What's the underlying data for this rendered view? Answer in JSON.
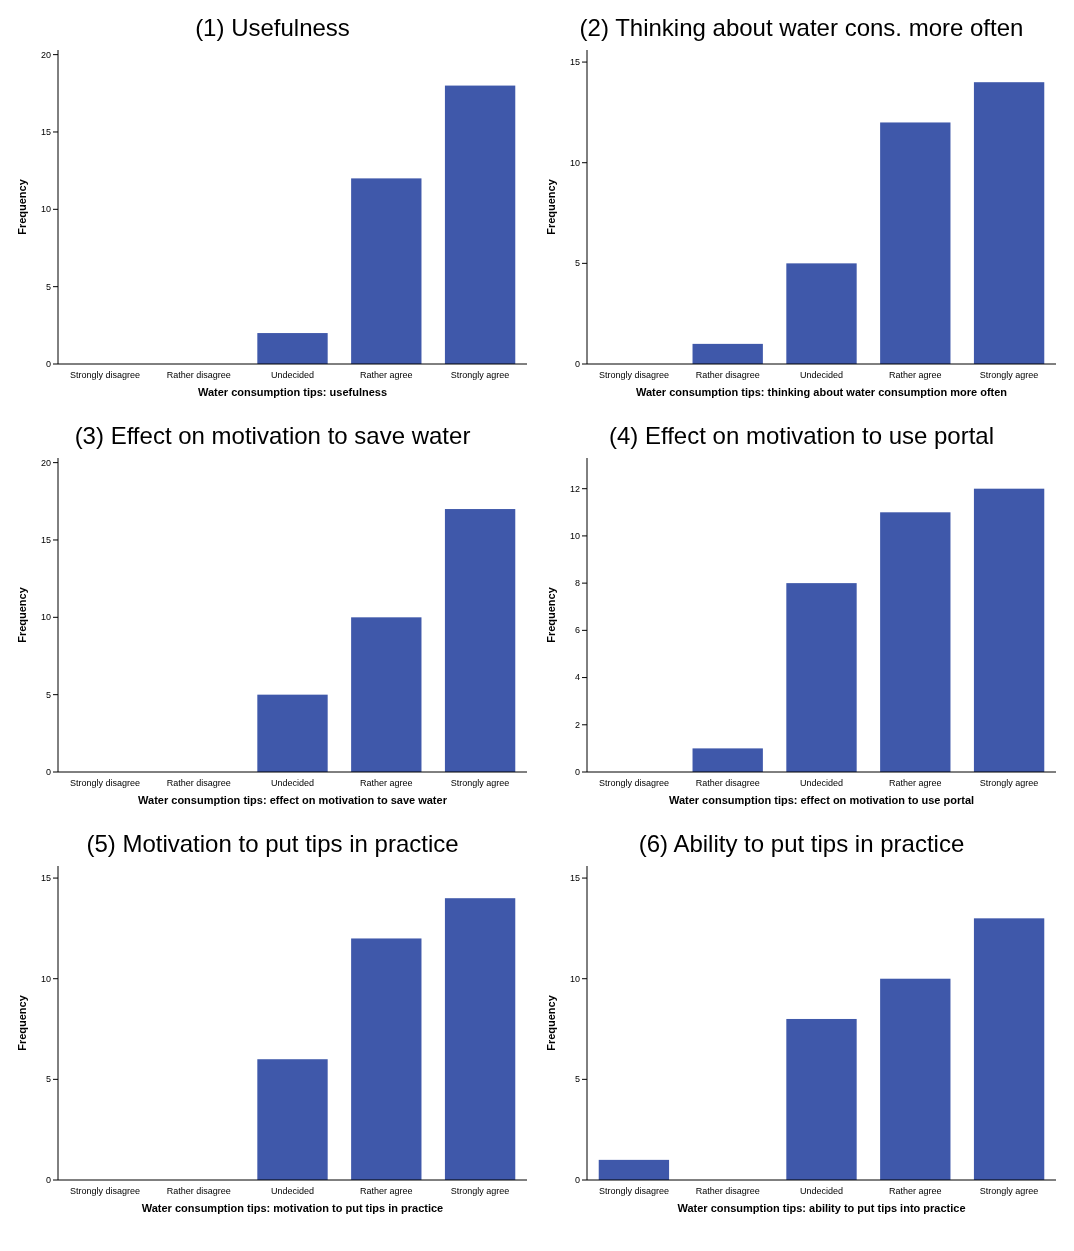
{
  "chart_data": [
    {
      "type": "bar",
      "title": "(1) Usefulness",
      "xlabel": "Water consumption tips: usefulness",
      "ylabel": "Frequency",
      "categories": [
        "Strongly disagree",
        "Rather disagree",
        "Undecided",
        "Rather agree",
        "Strongly agree"
      ],
      "values": [
        0,
        0,
        2,
        12,
        18
      ],
      "color": "#3f58aa",
      "ylim": [
        0,
        20.3
      ],
      "yticks": [
        0,
        5,
        10,
        15,
        20
      ],
      "grid": false
    },
    {
      "type": "bar",
      "title": "(2) Thinking about water cons. more often",
      "xlabel": "Water consumption tips: thinking about water consumption more often",
      "ylabel": "Frequency",
      "categories": [
        "Strongly disagree",
        "Rather disagree",
        "Undecided",
        "Rather agree",
        "Strongly agree"
      ],
      "values": [
        0,
        1,
        5,
        12,
        14
      ],
      "color": "#3f58aa",
      "ylim": [
        0,
        15.6
      ],
      "yticks": [
        0,
        5,
        10,
        15
      ],
      "grid": false
    },
    {
      "type": "bar",
      "title": "(3) Effect on motivation to save water",
      "xlabel": "Water consumption tips: effect on motivation to save water",
      "ylabel": "Frequency",
      "categories": [
        "Strongly disagree",
        "Rather disagree",
        "Undecided",
        "Rather agree",
        "Strongly agree"
      ],
      "values": [
        0,
        0,
        5,
        10,
        17
      ],
      "color": "#3f58aa",
      "ylim": [
        0,
        20.3
      ],
      "yticks": [
        0,
        5,
        10,
        15,
        20
      ],
      "grid": false
    },
    {
      "type": "bar",
      "title": "(4) Effect on motivation to use portal",
      "xlabel": "Water consumption tips: effect on motivation to use portal",
      "ylabel": "Frequency",
      "categories": [
        "Strongly disagree",
        "Rather disagree",
        "Undecided",
        "Rather agree",
        "Strongly agree"
      ],
      "values": [
        0,
        1,
        8,
        11,
        12
      ],
      "color": "#3f58aa",
      "ylim": [
        0,
        13.3
      ],
      "yticks": [
        0,
        2,
        4,
        6,
        8,
        10,
        12
      ],
      "grid": false
    },
    {
      "type": "bar",
      "title": "(5) Motivation to put tips in practice",
      "xlabel": "Water consumption tips: motivation to put tips in practice",
      "ylabel": "Frequency",
      "categories": [
        "Strongly disagree",
        "Rather disagree",
        "Undecided",
        "Rather agree",
        "Strongly agree"
      ],
      "values": [
        0,
        0,
        6,
        12,
        14
      ],
      "color": "#3f58aa",
      "ylim": [
        0,
        15.6
      ],
      "yticks": [
        0,
        5,
        10,
        15
      ],
      "grid": false
    },
    {
      "type": "bar",
      "title": "(6) Ability to put tips in practice",
      "xlabel": "Water consumption tips: ability to put tips into practice",
      "ylabel": "Frequency",
      "categories": [
        "Strongly disagree",
        "Rather disagree",
        "Undecided",
        "Rather agree",
        "Strongly agree"
      ],
      "values": [
        1,
        0,
        8,
        10,
        13
      ],
      "color": "#3f58aa",
      "ylim": [
        0,
        15.6
      ],
      "yticks": [
        0,
        5,
        10,
        15
      ],
      "grid": false
    }
  ]
}
